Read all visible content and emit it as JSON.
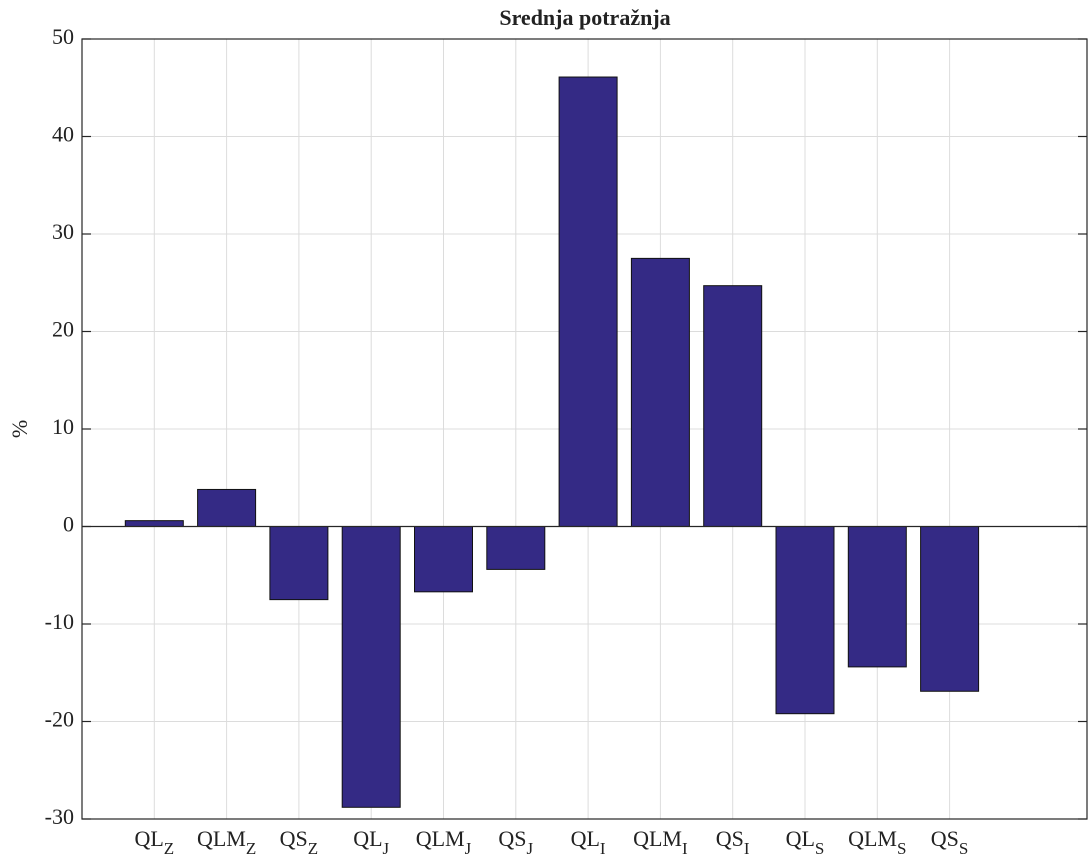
{
  "chart_data": {
    "type": "bar",
    "title": "Srednja potražnja",
    "y_label": "%",
    "categories": [
      {
        "text": "QL",
        "sub": "Z"
      },
      {
        "text": "QLM",
        "sub": "Z"
      },
      {
        "text": "QS",
        "sub": "Z"
      },
      {
        "text": "QL",
        "sub": "J"
      },
      {
        "text": "QLM",
        "sub": "J"
      },
      {
        "text": "QS",
        "sub": "J"
      },
      {
        "text": "QL",
        "sub": "I"
      },
      {
        "text": "QLM",
        "sub": "I"
      },
      {
        "text": "QS",
        "sub": "I"
      },
      {
        "text": "QL",
        "sub": "S"
      },
      {
        "text": "QLM",
        "sub": "S"
      },
      {
        "text": "QS",
        "sub": "S"
      }
    ],
    "values": [
      0.6,
      3.8,
      -7.5,
      -28.8,
      -6.7,
      -4.4,
      46.1,
      27.5,
      24.7,
      -19.2,
      -14.4,
      -16.9
    ],
    "color": "#342a85",
    "ylim": [
      -30,
      50
    ],
    "yticks": [
      -30,
      -20,
      -10,
      0,
      10,
      20,
      30,
      40,
      50
    ],
    "grid": true
  }
}
